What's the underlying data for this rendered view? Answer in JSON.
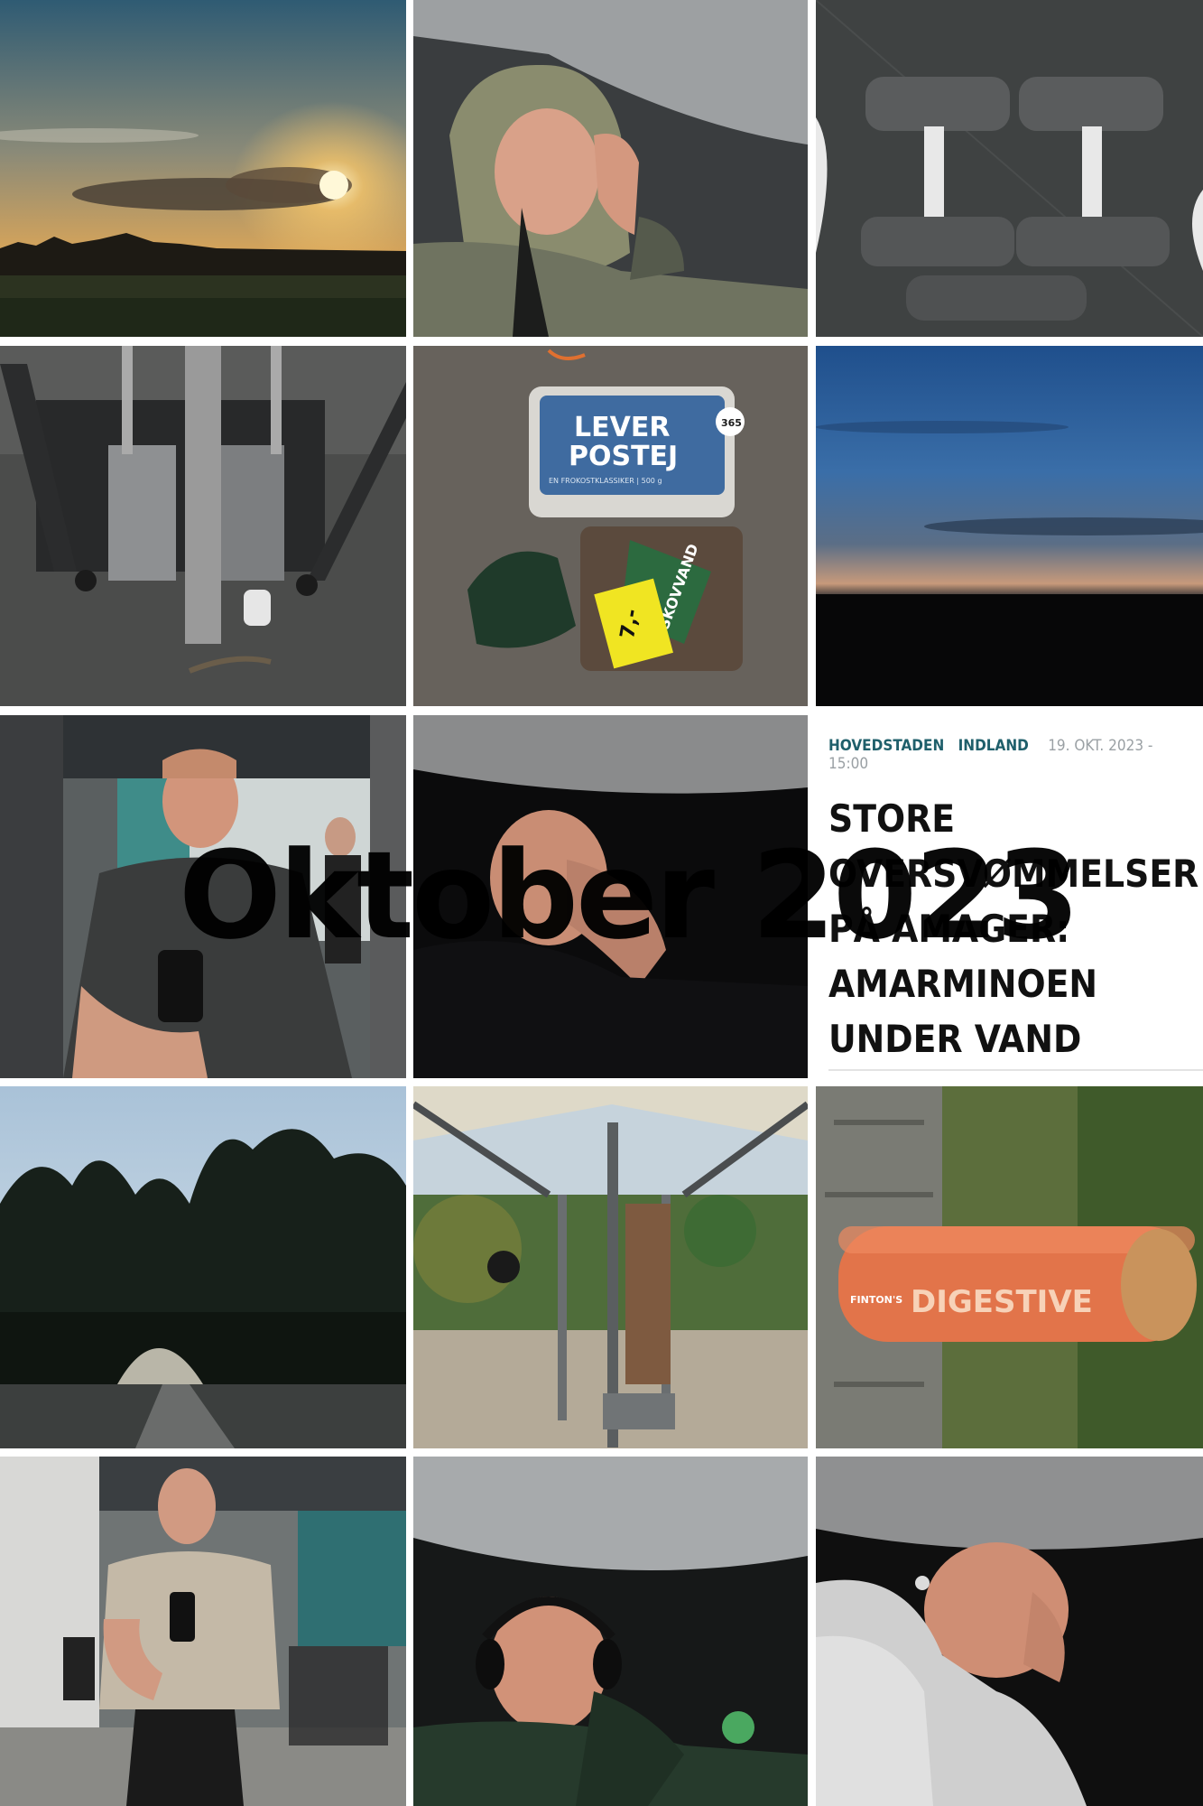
{
  "overlay": {
    "title": "Oktober 2023"
  },
  "news_card": {
    "category_1": "HOVEDSTADEN",
    "category_2": "INDLAND",
    "date": "19. OKT. 2023 - 15:00",
    "headline": "STORE OVERSVØMMELSER PÅ AMAGER: AMARMINOEN UNDER VAND"
  },
  "product_labels": {
    "leverpostej_line1": "LEVER",
    "leverpostej_line2": "POSTEJ",
    "leverpostej_sub": "EN FROKOSTKLASSIKER | 500 g",
    "badge_365": "365",
    "bread_brand": "SKOVVAND",
    "price": "7,-",
    "biscuit_brand": "FINTON'S",
    "biscuit_name": "DIGESTIVE"
  },
  "tiles": [
    {
      "name": "sunset-field-photo"
    },
    {
      "name": "man-sleeping-hood-photo"
    },
    {
      "name": "dumbbells-photo"
    },
    {
      "name": "gym-cable-machine-photo"
    },
    {
      "name": "leverpostej-bread-photo"
    },
    {
      "name": "dusk-sky-photo"
    },
    {
      "name": "gym-mirror-selfie-photo"
    },
    {
      "name": "man-sleeping-dark-photo"
    },
    {
      "name": "news-article-card"
    },
    {
      "name": "trees-tunnel-photo"
    },
    {
      "name": "outdoor-gym-photo"
    },
    {
      "name": "digestive-biscuits-photo"
    },
    {
      "name": "gym-selfie-beige-shirt-photo"
    },
    {
      "name": "man-sleeping-headphones-photo"
    },
    {
      "name": "man-sleeping-sweater-photo"
    }
  ]
}
